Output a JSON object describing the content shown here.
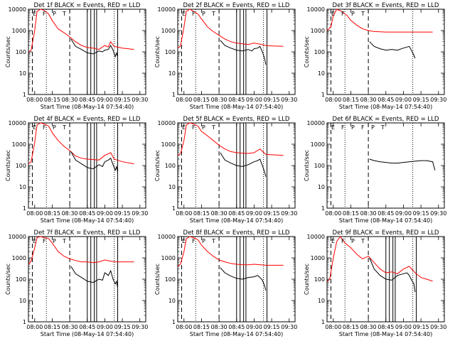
{
  "figure": {
    "xlabel": "Start Time (08-May-14 07:54:40)",
    "ylabel": "Counts/sec",
    "x_ticks": [
      "08:00",
      "08:15",
      "08:30",
      "08:45",
      "09:00",
      "09:15",
      "09:30"
    ],
    "y_ticks": [
      "1",
      "10",
      "100",
      "1000",
      "10000"
    ],
    "markers": [
      "E",
      "F",
      "P",
      "T"
    ]
  },
  "chart_data": [
    {
      "type": "line",
      "title": "Det 1f BLACK = Events, RED = LLD",
      "x": [
        "07:54:40",
        "08:05",
        "08:10",
        "08:15",
        "08:20",
        "08:25",
        "08:31",
        "08:35",
        "08:45",
        "08:50",
        "08:55",
        "09:00",
        "09:03",
        "09:05",
        "09:08",
        "09:11",
        "09:20",
        "09:25"
      ],
      "ylim": [
        1,
        10000
      ],
      "yscale": "log",
      "series": [
        {
          "name": "Events",
          "color": "#000000",
          "x": [
            "08:31",
            "08:35",
            "08:40",
            "08:45",
            "08:50",
            "08:55",
            "08:58",
            "09:00",
            "09:03",
            "09:05",
            "09:07",
            "09:09",
            "09:10",
            "09:11"
          ],
          "values": [
            400,
            180,
            130,
            90,
            80,
            110,
            100,
            120,
            130,
            200,
            120,
            60,
            90,
            60
          ]
        },
        {
          "name": "LLD",
          "color": "#ff0000",
          "x": [
            "07:54:40",
            "07:57",
            "08:00",
            "08:02",
            "08:05",
            "08:08",
            "08:12",
            "08:15",
            "08:20",
            "08:25",
            "08:30",
            "08:35",
            "08:40",
            "08:45",
            "08:50",
            "08:55",
            "09:00",
            "09:03",
            "09:05",
            "09:08",
            "09:15",
            "09:20",
            "09:25"
          ],
          "values": [
            100,
            120,
            1000,
            8000,
            10000,
            9000,
            6000,
            3000,
            1200,
            800,
            500,
            300,
            200,
            160,
            150,
            130,
            200,
            170,
            300,
            180,
            150,
            140,
            130
          ]
        }
      ],
      "lines_solid": [
        "08:45",
        "08:48",
        "08:51",
        "08:53",
        "09:11"
      ],
      "lines_dashed": [
        "07:58",
        "08:30"
      ],
      "lines_dotted": [
        "08:10",
        "09:08"
      ],
      "labels": [
        "E",
        "F",
        "P",
        "T"
      ]
    },
    {
      "type": "line",
      "title": "Det 2f BLACK = Events, RED = LLD",
      "ylim": [
        1,
        10000
      ],
      "yscale": "log",
      "series": [
        {
          "name": "Events",
          "color": "#000000",
          "x": [
            "08:31",
            "08:35",
            "08:40",
            "08:45",
            "08:50",
            "08:55",
            "08:58",
            "09:00",
            "09:03",
            "09:05",
            "09:07",
            "09:09",
            "09:10"
          ],
          "values": [
            350,
            200,
            150,
            120,
            110,
            130,
            110,
            140,
            150,
            180,
            100,
            50,
            25
          ]
        },
        {
          "name": "LLD",
          "color": "#ff0000",
          "x": [
            "07:54:40",
            "07:57",
            "08:00",
            "08:02",
            "08:05",
            "08:08",
            "08:12",
            "08:15",
            "08:20",
            "08:25",
            "08:30",
            "08:35",
            "08:40",
            "08:45",
            "08:50",
            "08:55",
            "09:00",
            "09:05",
            "09:10",
            "09:15",
            "09:25"
          ],
          "values": [
            150,
            180,
            1500,
            8000,
            10000,
            8000,
            6000,
            3500,
            1500,
            900,
            600,
            400,
            300,
            260,
            240,
            220,
            260,
            230,
            200,
            190,
            180
          ]
        }
      ],
      "lines_solid": [
        "08:45",
        "08:48",
        "08:51",
        "08:53",
        "09:11"
      ],
      "lines_dashed": [
        "07:58",
        "08:30"
      ],
      "lines_dotted": [
        "08:10",
        "09:08"
      ],
      "labels": [
        "E",
        "F",
        "P",
        "T"
      ]
    },
    {
      "type": "line",
      "title": "Det 3f BLACK = Events, RED = LLD",
      "ylim": [
        1,
        10000
      ],
      "yscale": "log",
      "series": [
        {
          "name": "Events",
          "color": "#000000",
          "x": [
            "08:31",
            "08:35",
            "08:40",
            "08:45",
            "08:50",
            "08:55",
            "09:00",
            "09:05",
            "09:08",
            "09:10"
          ],
          "values": [
            300,
            180,
            140,
            120,
            130,
            120,
            150,
            180,
            90,
            50
          ]
        },
        {
          "name": "LLD",
          "color": "#ff0000",
          "x": [
            "07:54:40",
            "07:58",
            "08:00",
            "08:03",
            "08:07",
            "08:12",
            "08:15",
            "08:20",
            "08:25",
            "08:30",
            "08:35",
            "08:45",
            "09:00",
            "09:10",
            "09:25"
          ],
          "values": [
            1000,
            1500,
            5000,
            10000,
            8000,
            5000,
            3000,
            1800,
            1200,
            1000,
            900,
            850,
            850,
            850,
            850
          ]
        }
      ],
      "lines_solid": [],
      "lines_dashed": [
        "07:58",
        "08:30"
      ],
      "lines_dotted": [
        "08:10",
        "09:08"
      ],
      "labels": [
        "E",
        "F",
        "P",
        "T"
      ]
    },
    {
      "type": "line",
      "title": "Det 4f BLACK = Events, RED = LLD",
      "ylim": [
        1,
        10000
      ],
      "yscale": "log",
      "series": [
        {
          "name": "Events",
          "color": "#000000",
          "x": [
            "08:31",
            "08:35",
            "08:40",
            "08:45",
            "08:50",
            "08:55",
            "08:58",
            "09:00",
            "09:03",
            "09:05",
            "09:07",
            "09:09",
            "09:10",
            "09:11"
          ],
          "values": [
            450,
            180,
            120,
            80,
            70,
            110,
            90,
            150,
            180,
            220,
            110,
            60,
            90,
            50
          ]
        },
        {
          "name": "LLD",
          "color": "#ff0000",
          "x": [
            "07:54:40",
            "07:57",
            "08:00",
            "08:02",
            "08:05",
            "08:08",
            "08:12",
            "08:15",
            "08:20",
            "08:25",
            "08:30",
            "08:35",
            "08:40",
            "08:45",
            "08:50",
            "08:55",
            "09:00",
            "09:05",
            "09:08",
            "09:15",
            "09:25"
          ],
          "values": [
            120,
            150,
            1200,
            8000,
            10000,
            9000,
            7000,
            3500,
            1500,
            800,
            500,
            280,
            220,
            200,
            190,
            180,
            300,
            400,
            200,
            150,
            120
          ]
        }
      ],
      "lines_solid": [
        "08:45",
        "08:48",
        "08:51",
        "08:53",
        "09:11"
      ],
      "lines_dashed": [
        "07:58",
        "08:30"
      ],
      "lines_dotted": [
        "08:10",
        "09:08"
      ],
      "labels": [
        "E",
        "F",
        "P",
        "T"
      ]
    },
    {
      "type": "line",
      "title": "Det 5f BLACK = Events, RED = LLD",
      "ylim": [
        1,
        10000
      ],
      "yscale": "log",
      "series": [
        {
          "name": "Events",
          "color": "#000000",
          "x": [
            "08:31",
            "08:35",
            "08:40",
            "08:45",
            "08:50",
            "08:55",
            "09:00",
            "09:03",
            "09:05",
            "09:07",
            "09:09",
            "09:10"
          ],
          "values": [
            400,
            180,
            130,
            100,
            90,
            110,
            150,
            170,
            200,
            100,
            50,
            30
          ]
        },
        {
          "name": "LLD",
          "color": "#ff0000",
          "x": [
            "07:54:40",
            "07:57",
            "08:00",
            "08:02",
            "08:05",
            "08:08",
            "08:12",
            "08:15",
            "08:20",
            "08:25",
            "08:30",
            "08:35",
            "08:40",
            "08:45",
            "08:50",
            "08:55",
            "09:00",
            "09:05",
            "09:10",
            "09:25"
          ],
          "values": [
            300,
            350,
            1500,
            8000,
            10000,
            9000,
            7000,
            4000,
            2500,
            1500,
            900,
            600,
            450,
            400,
            380,
            370,
            400,
            600,
            330,
            300
          ]
        }
      ],
      "lines_solid": [
        "08:45",
        "08:48",
        "08:51",
        "08:53",
        "09:11"
      ],
      "lines_dashed": [
        "07:58",
        "08:30"
      ],
      "lines_dotted": [
        "08:10",
        "09:08"
      ],
      "labels": [
        "E",
        "F",
        "P",
        "T"
      ]
    },
    {
      "type": "line",
      "title": "Det 6f BLACK = Events, RED = LLD",
      "ylim": [
        1,
        10000
      ],
      "yscale": "log",
      "series": [
        {
          "name": "Events",
          "color": "#000000",
          "x": [
            "08:31",
            "08:35",
            "08:40",
            "08:45",
            "08:50",
            "08:55",
            "09:00",
            "09:05",
            "09:10",
            "09:15",
            "09:20",
            "09:25",
            "09:27"
          ],
          "values": [
            200,
            170,
            150,
            140,
            130,
            130,
            140,
            150,
            160,
            170,
            170,
            150,
            60
          ]
        }
      ],
      "lines_solid": [],
      "lines_dashed": [
        "07:58",
        "08:30"
      ],
      "lines_dotted": [
        "08:10",
        "09:08"
      ],
      "labels": [
        "E",
        "F",
        "P",
        "F",
        "P",
        "T"
      ]
    },
    {
      "type": "line",
      "title": "Det 7f BLACK = Events, RED = LLD",
      "ylim": [
        1,
        10000
      ],
      "yscale": "log",
      "series": [
        {
          "name": "Events",
          "color": "#000000",
          "x": [
            "08:31",
            "08:35",
            "08:40",
            "08:45",
            "08:50",
            "08:55",
            "08:58",
            "09:00",
            "09:03",
            "09:05",
            "09:07",
            "09:09",
            "09:10",
            "09:11"
          ],
          "values": [
            400,
            180,
            120,
            80,
            70,
            100,
            90,
            200,
            150,
            250,
            100,
            60,
            80,
            40
          ]
        },
        {
          "name": "LLD",
          "color": "#ff0000",
          "x": [
            "07:54:40",
            "07:57",
            "08:00",
            "08:02",
            "08:05",
            "08:08",
            "08:12",
            "08:15",
            "08:20",
            "08:25",
            "08:30",
            "08:35",
            "08:40",
            "08:45",
            "08:50",
            "08:55",
            "09:00",
            "09:05",
            "09:10",
            "09:25"
          ],
          "values": [
            500,
            700,
            3000,
            9000,
            10000,
            9000,
            8000,
            5000,
            2000,
            1200,
            900,
            750,
            650,
            650,
            600,
            650,
            800,
            700,
            650,
            650
          ]
        }
      ],
      "lines_solid": [
        "08:45",
        "08:48",
        "08:51",
        "08:53",
        "09:11"
      ],
      "lines_dashed": [
        "07:58",
        "08:30"
      ],
      "lines_dotted": [
        "08:10",
        "09:08"
      ],
      "labels": [
        "E",
        "F",
        "P",
        "T"
      ]
    },
    {
      "type": "line",
      "title": "Det 8f BLACK = Events, RED = LLD",
      "ylim": [
        1,
        10000
      ],
      "yscale": "log",
      "series": [
        {
          "name": "Events",
          "color": "#000000",
          "x": [
            "08:31",
            "08:35",
            "08:40",
            "08:45",
            "08:50",
            "08:55",
            "09:00",
            "09:03",
            "09:05",
            "09:07",
            "09:09",
            "09:10"
          ],
          "values": [
            350,
            200,
            140,
            110,
            100,
            120,
            130,
            150,
            120,
            90,
            50,
            30
          ]
        },
        {
          "name": "LLD",
          "color": "#ff0000",
          "x": [
            "07:54:40",
            "07:57",
            "08:00",
            "08:02",
            "08:05",
            "08:08",
            "08:12",
            "08:15",
            "08:20",
            "08:25",
            "08:30",
            "08:35",
            "08:40",
            "08:45",
            "08:50",
            "08:55",
            "09:00",
            "09:05",
            "09:10",
            "09:25"
          ],
          "values": [
            400,
            500,
            2000,
            8000,
            10000,
            9000,
            7000,
            4000,
            2000,
            1200,
            800,
            650,
            550,
            500,
            480,
            470,
            500,
            480,
            450,
            450
          ]
        }
      ],
      "lines_solid": [
        "08:45",
        "08:48",
        "08:51",
        "08:53",
        "09:11"
      ],
      "lines_dashed": [
        "07:58",
        "08:30"
      ],
      "lines_dotted": [
        "08:10",
        "09:08"
      ],
      "labels": [
        "E",
        "F",
        "P",
        "T"
      ]
    },
    {
      "type": "line",
      "title": "Det 9f BLACK = Events, RED = LLD",
      "ylim": [
        1,
        10000
      ],
      "yscale": "log",
      "series": [
        {
          "name": "Events",
          "color": "#000000",
          "x": [
            "08:31",
            "08:35",
            "08:40",
            "08:45",
            "08:50",
            "08:55",
            "09:00",
            "09:03",
            "09:05",
            "09:07",
            "09:09",
            "09:10"
          ],
          "values": [
            1000,
            300,
            150,
            100,
            90,
            150,
            180,
            200,
            150,
            90,
            60,
            25
          ]
        },
        {
          "name": "LLD",
          "color": "#ff0000",
          "x": [
            "07:54:40",
            "07:57",
            "08:00",
            "08:03",
            "08:06",
            "08:10",
            "08:15",
            "08:20",
            "08:25",
            "08:30",
            "08:35",
            "08:40",
            "08:45",
            "08:50",
            "08:55",
            "09:00",
            "09:05",
            "09:10",
            "09:15",
            "09:20",
            "09:25"
          ],
          "values": [
            80,
            100,
            1000,
            6000,
            10000,
            5000,
            3000,
            1500,
            900,
            1200,
            600,
            300,
            200,
            220,
            180,
            300,
            400,
            200,
            120,
            100,
            80
          ]
        }
      ],
      "lines_solid": [
        "08:45",
        "08:48",
        "08:51",
        "08:53",
        "09:11"
      ],
      "lines_dashed": [
        "07:58",
        "08:30"
      ],
      "lines_dotted": [
        "08:10",
        "09:08"
      ],
      "labels": [
        "E",
        "F",
        "P",
        "T"
      ]
    }
  ]
}
